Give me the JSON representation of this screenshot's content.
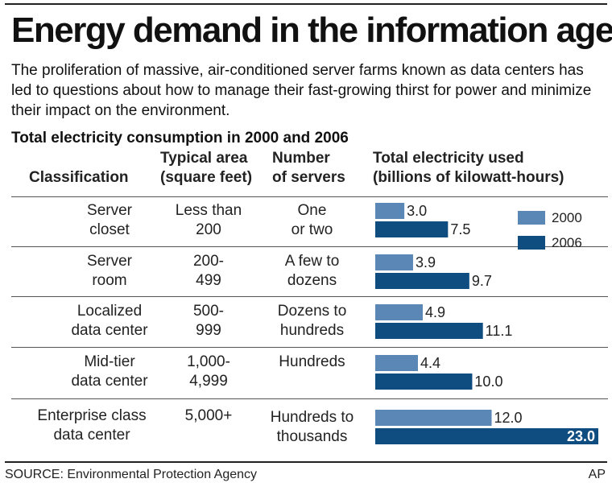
{
  "title": "Energy demand in the information age",
  "subtitle": "The proliferation of massive, air-conditioned server farms known as data centers has led to questions about how to manage their fast-growing thirst for power and minimize their impact on the environment.",
  "table_title": "Total electricity consumption in 2000 and 2006",
  "headers": {
    "classification": "Classification",
    "area": [
      "Typical area",
      "(square feet)"
    ],
    "servers": [
      "Number",
      "of servers"
    ],
    "electricity": [
      "Total electricity used",
      "(billions of kilowatt-hours)"
    ]
  },
  "rows": [
    {
      "classification": [
        "Server",
        "closet"
      ],
      "area": [
        "Less than",
        "200"
      ],
      "servers": [
        "One",
        "or two"
      ]
    },
    {
      "classification": [
        "Server",
        "room"
      ],
      "area": [
        "200-",
        "499"
      ],
      "servers": [
        "A few to",
        "dozens"
      ]
    },
    {
      "classification": [
        "Localized",
        "data center"
      ],
      "area": [
        "500-",
        "999"
      ],
      "servers": [
        "Dozens to",
        "hundreds"
      ]
    },
    {
      "classification": [
        "Mid-tier",
        "data center"
      ],
      "area": [
        "1,000-",
        "4,999"
      ],
      "servers": [
        "",
        "Hundreds"
      ]
    },
    {
      "classification": [
        "Enterprise class",
        "data center"
      ],
      "area": [
        "",
        "5,000+"
      ],
      "servers": [
        "Hundreds to",
        "thousands"
      ]
    }
  ],
  "legend": [
    "2000",
    "2006"
  ],
  "source": "SOURCE: Environmental Protection Agency",
  "credit": "AP",
  "colors": {
    "y2000": "#5b87b6",
    "y2006": "#0f4c7f",
    "text": "#222222"
  },
  "chart_data": {
    "type": "bar",
    "orientation": "horizontal",
    "categories": [
      "Server closet",
      "Server room",
      "Localized data center",
      "Mid-tier data center",
      "Enterprise class data center"
    ],
    "series": [
      {
        "name": "2000",
        "values": [
          3.0,
          3.9,
          4.9,
          4.4,
          12.0
        ]
      },
      {
        "name": "2006",
        "values": [
          7.5,
          9.7,
          11.1,
          10.0,
          23.0
        ]
      }
    ],
    "value_labels": {
      "2000": [
        "3.0",
        "3.9",
        "4.9",
        "4.4",
        "12.0"
      ],
      "2006": [
        "7.5",
        "9.7",
        "11.1",
        "10.0",
        "23.0"
      ]
    },
    "xlim": [
      0,
      23.0
    ],
    "legend_position": "right",
    "grid": false
  }
}
